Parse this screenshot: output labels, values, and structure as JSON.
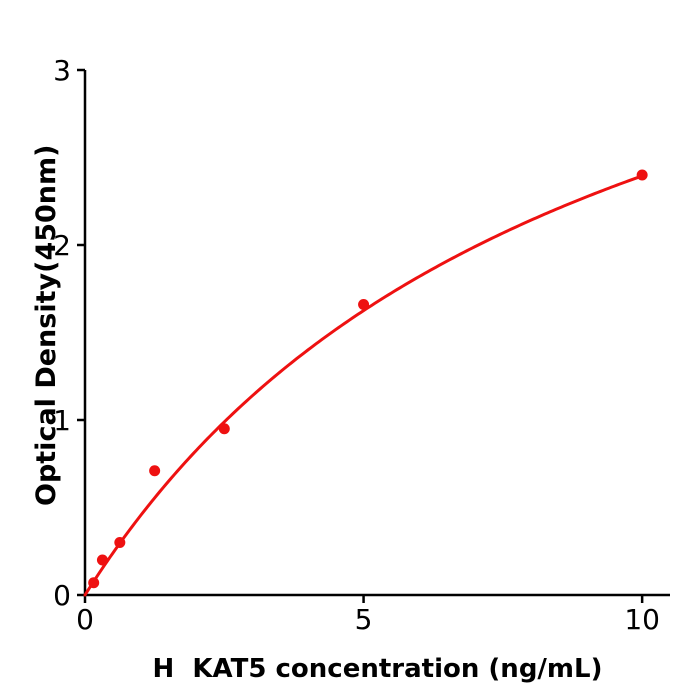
{
  "chart_data": {
    "type": "scatter",
    "title": "",
    "xlabel": "H  KAT5 concentration (ng/mL)",
    "ylabel": "Optical Density(450nm)",
    "xlim": [
      0,
      10.5
    ],
    "ylim": [
      0,
      3
    ],
    "xticks": [
      0,
      5,
      10
    ],
    "yticks": [
      0,
      1,
      2,
      3
    ],
    "grid": false,
    "legend": null,
    "points": [
      {
        "x": 0.156,
        "y": 0.07
      },
      {
        "x": 0.313,
        "y": 0.2
      },
      {
        "x": 0.625,
        "y": 0.3
      },
      {
        "x": 1.25,
        "y": 0.71
      },
      {
        "x": 2.5,
        "y": 0.95
      },
      {
        "x": 5,
        "y": 1.66
      },
      {
        "x": 10,
        "y": 2.4
      }
    ],
    "fit_curve": {
      "model": "michaelis-menten",
      "formula": "y = a*x/(b+x)",
      "a": 4.55,
      "b": 9.0,
      "x_range": [
        0,
        10
      ]
    },
    "colors": {
      "series": "#ee1111",
      "axis": "#000000",
      "background": "#ffffff"
    }
  }
}
